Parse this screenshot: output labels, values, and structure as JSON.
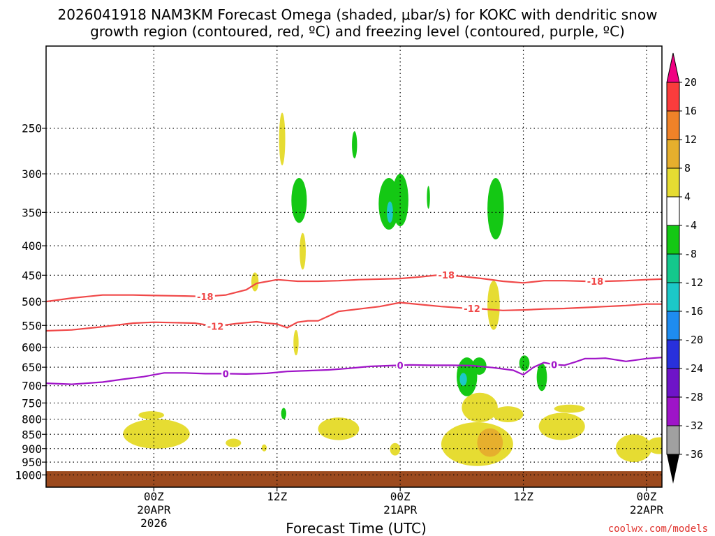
{
  "chart_data": {
    "type": "time-height-cross-section",
    "title_line1": "2026041918 NAM3KM Forecast Omega (shaded, μbar/s) for KOKC with dendritic snow",
    "title_line2": "growth region (contoured, red, ºC) and freezing level (contoured, purple, ºC)",
    "xlabel": "Forecast Time (UTC)",
    "credit": "coolwx.com/models",
    "xlim_hours": [
      -10.5,
      49.5
    ],
    "ylim_hpa": [
      1050,
      180
    ],
    "y_ticks": [
      {
        "p": 250,
        "label": "250"
      },
      {
        "p": 300,
        "label": "300"
      },
      {
        "p": 350,
        "label": "350"
      },
      {
        "p": 400,
        "label": "400"
      },
      {
        "p": 450,
        "label": "450"
      },
      {
        "p": 500,
        "label": "500"
      },
      {
        "p": 550,
        "label": "550"
      },
      {
        "p": 600,
        "label": "600"
      },
      {
        "p": 650,
        "label": "650"
      },
      {
        "p": 700,
        "label": "700"
      },
      {
        "p": 750,
        "label": "750"
      },
      {
        "p": 800,
        "label": "800"
      },
      {
        "p": 850,
        "label": "850"
      },
      {
        "p": 900,
        "label": "900"
      },
      {
        "p": 950,
        "label": "950"
      },
      {
        "p": 1000,
        "label": "1000"
      }
    ],
    "x_ticks": [
      {
        "h": 0,
        "lines": [
          "00Z",
          "20APR",
          "2026"
        ]
      },
      {
        "h": 12,
        "lines": [
          "12Z"
        ]
      },
      {
        "h": 24,
        "lines": [
          "00Z",
          "21APR"
        ]
      },
      {
        "h": 36,
        "lines": [
          "12Z"
        ]
      },
      {
        "h": 48,
        "lines": [
          "00Z",
          "22APR"
        ]
      }
    ],
    "colorbar": {
      "colors": [
        "#000000",
        "#a0a0a0",
        "#9e14c8",
        "#6e14c8",
        "#2830dc",
        "#1e8cf0",
        "#1cc8c8",
        "#14c88c",
        "#14c814",
        "#ffffff",
        "#e6dc32",
        "#e6af2d",
        "#f08228",
        "#fa3c3c",
        "#f00082"
      ],
      "labels": [
        "-36",
        "-32",
        "-28",
        "-24",
        "-20",
        "-16",
        "-12",
        "-8",
        "-4",
        "4",
        "8",
        "12",
        "16",
        "20"
      ]
    },
    "colors": {
      "dgz_contour": "#f04848",
      "freezing_contour": "#a014c8",
      "ground": "#9c4a1e",
      "positive_omega": "#e6dc32",
      "strong_positive_omega": "#e6af2d",
      "negative_omega": "#14c814",
      "strong_negative_omega": "#1cc8c8"
    },
    "series": [
      {
        "name": "-18 C isotherm",
        "color": "#f04848",
        "labels": [
          "-18",
          "-18",
          "-18"
        ],
        "label_hours": [
          5,
          28.5,
          43
        ],
        "hours": [
          -10.5,
          -8,
          -5,
          -2,
          0,
          3,
          5,
          7,
          9,
          10,
          12,
          14,
          16,
          18,
          20,
          22,
          24,
          26,
          28,
          30,
          32,
          34,
          36,
          38,
          40,
          42,
          44,
          46,
          48,
          49.5
        ],
        "hpa": [
          500,
          493,
          487,
          487,
          488,
          489,
          490,
          487,
          477,
          465,
          458,
          461,
          461,
          460,
          458,
          457,
          456,
          453,
          449,
          452,
          456,
          461,
          464,
          460,
          460,
          461,
          461,
          460,
          458,
          457
        ]
      },
      {
        "name": "-12 C isotherm",
        "color": "#f04848",
        "labels": [
          "-12",
          "-12"
        ],
        "label_hours": [
          6,
          31
        ],
        "hours": [
          -10.5,
          -8,
          -5,
          -2,
          0,
          2,
          4,
          6,
          8,
          10,
          11,
          12,
          13,
          14,
          15,
          16,
          17,
          18,
          20,
          22,
          24,
          26,
          28,
          30,
          32,
          34,
          36,
          38,
          40,
          42,
          44,
          46,
          48,
          49.5
        ],
        "hpa": [
          562,
          560,
          553,
          545,
          543,
          544,
          545,
          552,
          546,
          542,
          545,
          547,
          555,
          543,
          540,
          540,
          530,
          520,
          515,
          510,
          502,
          506,
          510,
          513,
          515,
          518,
          517,
          515,
          514,
          512,
          510,
          508,
          505,
          505
        ]
      },
      {
        "name": "0 C freezing level",
        "color": "#a014c8",
        "labels": [
          "0",
          "0",
          "0"
        ],
        "label_hours": [
          7,
          24,
          39
        ],
        "hours": [
          -10.5,
          -8,
          -5,
          -3,
          -1,
          1,
          3,
          5,
          7,
          9,
          11,
          13,
          15,
          17,
          19,
          21,
          23,
          25,
          27,
          29,
          31,
          33,
          35,
          36,
          37,
          38,
          39,
          40,
          41,
          42,
          43,
          44,
          46,
          48,
          49.5
        ],
        "hpa": [
          693,
          696,
          690,
          682,
          675,
          665,
          665,
          667,
          667,
          668,
          666,
          661,
          659,
          657,
          653,
          648,
          646,
          644,
          645,
          645,
          646,
          651,
          658,
          670,
          650,
          638,
          643,
          645,
          637,
          628,
          628,
          627,
          635,
          628,
          625
        ]
      }
    ],
    "omega_regions": [
      {
        "color": "#e6dc32",
        "h": [
          -3,
          3.5
        ],
        "p": [
          800,
          900
        ]
      },
      {
        "color": "#e6dc32",
        "h": [
          -1.5,
          1
        ],
        "p": [
          775,
          800
        ]
      },
      {
        "color": "#e6dc32",
        "h": [
          7,
          8.5
        ],
        "p": [
          865,
          895
        ]
      },
      {
        "color": "#e6dc32",
        "h": [
          10.5,
          11
        ],
        "p": [
          885,
          910
        ]
      },
      {
        "color": "#e6dc32",
        "h": [
          16,
          20
        ],
        "p": [
          795,
          870
        ]
      },
      {
        "color": "#e6dc32",
        "h": [
          23,
          24
        ],
        "p": [
          880,
          925
        ]
      },
      {
        "color": "#e6dc32",
        "h": [
          28,
          35
        ],
        "p": [
          810,
          965
        ]
      },
      {
        "color": "#e6dc32",
        "h": [
          30,
          33.5
        ],
        "p": [
          720,
          810
        ]
      },
      {
        "color": "#e6dc32",
        "h": [
          33,
          36
        ],
        "p": [
          760,
          810
        ]
      },
      {
        "color": "#e6dc32",
        "h": [
          37.5,
          42
        ],
        "p": [
          780,
          870
        ]
      },
      {
        "color": "#e6dc32",
        "h": [
          39,
          42
        ],
        "p": [
          755,
          780
        ]
      },
      {
        "color": "#e6dc32",
        "h": [
          45,
          48.5
        ],
        "p": [
          850,
          950
        ]
      },
      {
        "color": "#e6dc32",
        "h": [
          48,
          50.5
        ],
        "p": [
          860,
          920
        ]
      },
      {
        "color": "#e6af2d",
        "h": [
          31.5,
          34
        ],
        "p": [
          830,
          930
        ]
      },
      {
        "color": "#e6dc32",
        "h": [
          12.2,
          12.8
        ],
        "p": [
          235,
          290
        ]
      },
      {
        "color": "#e6dc32",
        "h": [
          14.2,
          14.8
        ],
        "p": [
          380,
          440
        ]
      },
      {
        "color": "#e6dc32",
        "h": [
          9.5,
          10.2
        ],
        "p": [
          445,
          480
        ]
      },
      {
        "color": "#e6dc32",
        "h": [
          13.6,
          14.1
        ],
        "p": [
          560,
          620
        ]
      },
      {
        "color": "#e6dc32",
        "h": [
          32.5,
          33.7
        ],
        "p": [
          460,
          560
        ]
      },
      {
        "color": "#14c814",
        "h": [
          13.4,
          14.9
        ],
        "p": [
          305,
          365
        ]
      },
      {
        "color": "#14c814",
        "h": [
          19.3,
          19.8
        ],
        "p": [
          253,
          282
        ]
      },
      {
        "color": "#14c814",
        "h": [
          21.9,
          23.9
        ],
        "p": [
          305,
          375
        ]
      },
      {
        "color": "#14c814",
        "h": [
          23.2,
          24.8
        ],
        "p": [
          300,
          370
        ]
      },
      {
        "color": "#14c814",
        "h": [
          26.6,
          26.9
        ],
        "p": [
          315,
          345
        ]
      },
      {
        "color": "#14c814",
        "h": [
          32.5,
          34.1
        ],
        "p": [
          305,
          390
        ]
      },
      {
        "color": "#14c814",
        "h": [
          12.4,
          12.9
        ],
        "p": [
          765,
          800
        ]
      },
      {
        "color": "#14c814",
        "h": [
          29.5,
          31.5
        ],
        "p": [
          625,
          730
        ]
      },
      {
        "color": "#14c814",
        "h": [
          31,
          32.4
        ],
        "p": [
          625,
          670
        ]
      },
      {
        "color": "#14c814",
        "h": [
          35.6,
          36.6
        ],
        "p": [
          620,
          660
        ]
      },
      {
        "color": "#14c814",
        "h": [
          37.3,
          38.3
        ],
        "p": [
          640,
          715
        ]
      },
      {
        "color": "#1cc8c8",
        "h": [
          22.7,
          23.3
        ],
        "p": [
          335,
          365
        ]
      },
      {
        "color": "#1cc8c8",
        "h": [
          29.8,
          30.5
        ],
        "p": [
          665,
          700
        ]
      }
    ]
  }
}
